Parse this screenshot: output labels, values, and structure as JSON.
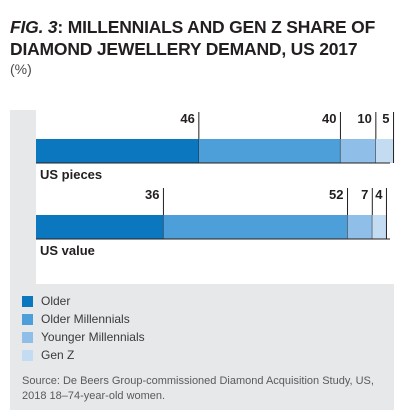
{
  "header": {
    "fig_label": "FIG. 3",
    "title": ": MILLENNIALS AND GEN Z SHARE OF DIAMOND JEWELLERY DEMAND, US 2017",
    "unit": "(%)"
  },
  "chart_data": {
    "type": "bar",
    "orientation": "horizontal",
    "stacked": true,
    "categories": [
      "US pieces",
      "US value"
    ],
    "series": [
      {
        "name": "Older",
        "values": [
          46,
          36
        ],
        "color": "#0b77bf"
      },
      {
        "name": "Older Millennials",
        "values": [
          40,
          52
        ],
        "color": "#4d9fd9"
      },
      {
        "name": "Younger Millennials",
        "values": [
          10,
          7
        ],
        "color": "#8fbfe8"
      },
      {
        "name": "Gen Z",
        "values": [
          5,
          4
        ],
        "color": "#c3dcf2"
      }
    ],
    "xlim": [
      0,
      100
    ],
    "legend_position": "bottom-left"
  },
  "source": "Source: De Beers Group-commissioned Diamond Acquisition Study, US, 2018 18–74-year-old women."
}
